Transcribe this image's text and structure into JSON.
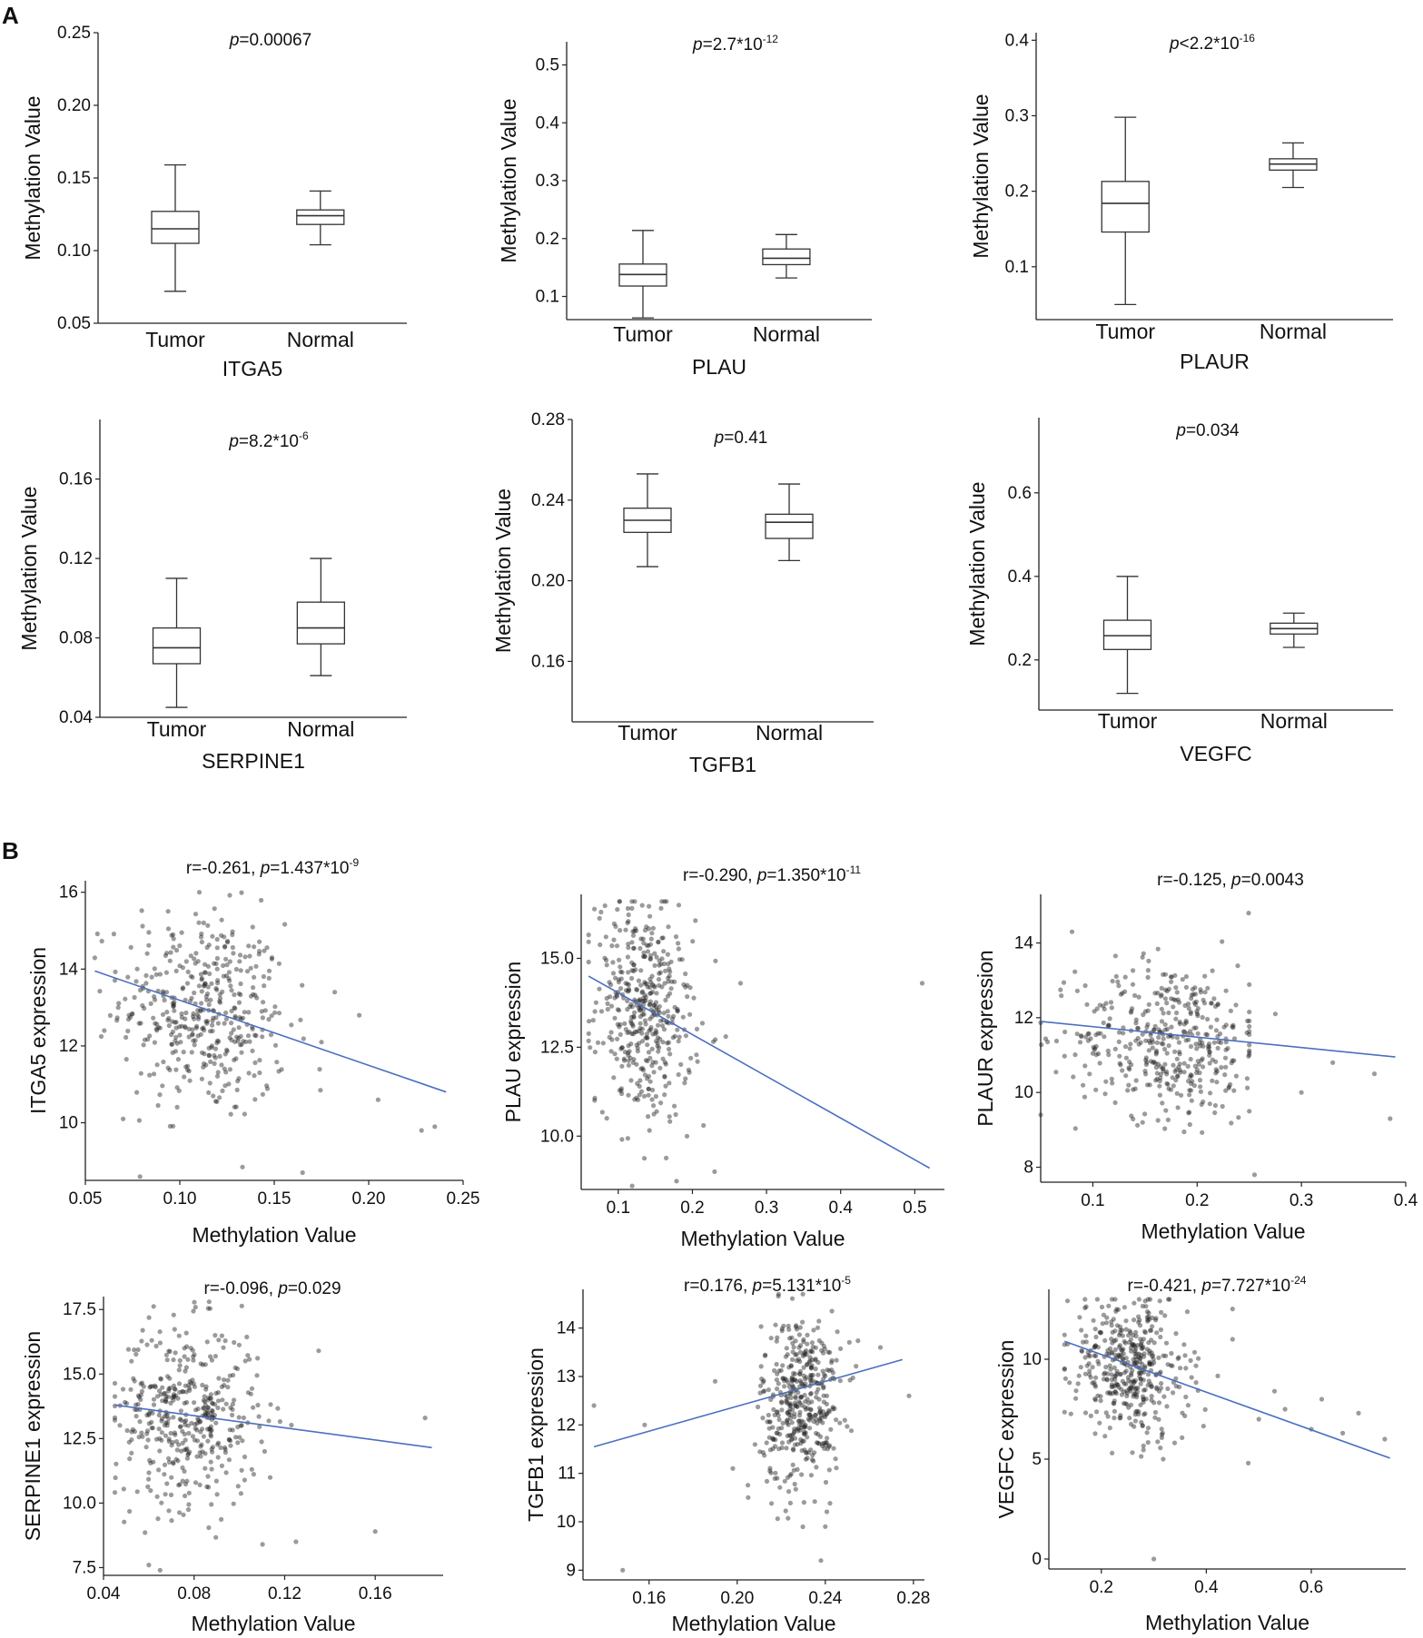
{
  "panels": {
    "a_label": "A",
    "b_label": "B"
  },
  "colors": {
    "fit_line": "#4a6fc1",
    "point": "#222222",
    "box_stroke": "#333333"
  },
  "chart_data": [
    {
      "id": "a1",
      "type": "box",
      "title": "p=0.00067",
      "title_italic": "p",
      "title_rest": "=0.00067",
      "title_sup": "",
      "xlabel": "ITGA5",
      "ylabel": "Methylation Value",
      "categories": [
        "Tumor",
        "Normal"
      ],
      "ylim": [
        0.05,
        0.25
      ],
      "yticks": [
        0.05,
        0.1,
        0.15,
        0.2,
        0.25
      ],
      "tick_labels": [
        "0.05",
        "0.10",
        "0.15",
        "0.20",
        "0.25"
      ],
      "boxes": [
        {
          "min": 0.072,
          "q1": 0.105,
          "median": 0.115,
          "q3": 0.127,
          "max": 0.159
        },
        {
          "min": 0.104,
          "q1": 0.118,
          "median": 0.124,
          "q3": 0.128,
          "max": 0.141
        }
      ]
    },
    {
      "id": "a2",
      "type": "box",
      "title": "p=2.7*10-12",
      "title_italic": "p",
      "title_rest": "=2.7*10",
      "title_sup": "-12",
      "xlabel": "PLAU",
      "ylabel": "Methylation Value",
      "categories": [
        "Tumor",
        "Normal"
      ],
      "ylim": [
        0.06,
        0.54
      ],
      "yticks": [
        0.1,
        0.2,
        0.3,
        0.4,
        0.5
      ],
      "tick_labels": [
        "0.1",
        "0.2",
        "0.3",
        "0.4",
        "0.5"
      ],
      "boxes": [
        {
          "min": 0.063,
          "q1": 0.118,
          "median": 0.138,
          "q3": 0.156,
          "max": 0.214
        },
        {
          "min": 0.132,
          "q1": 0.155,
          "median": 0.166,
          "q3": 0.182,
          "max": 0.207
        }
      ]
    },
    {
      "id": "a3",
      "type": "box",
      "title": "p<2.2*10-16",
      "title_italic": "p",
      "title_rest": "<2.2*10",
      "title_sup": "-16",
      "xlabel": "PLAUR",
      "ylabel": "Methylation Value",
      "categories": [
        "Tumor",
        "Normal"
      ],
      "ylim": [
        0.03,
        0.41
      ],
      "yticks": [
        0.1,
        0.2,
        0.3,
        0.4
      ],
      "tick_labels": [
        "0.1",
        "0.2",
        "0.3",
        "0.4"
      ],
      "boxes": [
        {
          "min": 0.05,
          "q1": 0.146,
          "median": 0.184,
          "q3": 0.213,
          "max": 0.298
        },
        {
          "min": 0.205,
          "q1": 0.228,
          "median": 0.236,
          "q3": 0.243,
          "max": 0.264
        }
      ]
    },
    {
      "id": "a4",
      "type": "box",
      "title": "p=8.2*10-6",
      "title_italic": "p",
      "title_rest": "=8.2*10",
      "title_sup": "-6",
      "xlabel": "SERPINE1",
      "ylabel": "Methylation Value",
      "categories": [
        "Tumor",
        "Normal"
      ],
      "ylim": [
        0.04,
        0.19
      ],
      "yticks": [
        0.04,
        0.08,
        0.12,
        0.16
      ],
      "tick_labels": [
        "0.04",
        "0.08",
        "0.12",
        "0.16"
      ],
      "boxes": [
        {
          "min": 0.045,
          "q1": 0.067,
          "median": 0.075,
          "q3": 0.085,
          "max": 0.11
        },
        {
          "min": 0.061,
          "q1": 0.077,
          "median": 0.085,
          "q3": 0.098,
          "max": 0.12
        }
      ]
    },
    {
      "id": "a5",
      "type": "box",
      "title": "p=0.41",
      "title_italic": "p",
      "title_rest": "=0.41",
      "title_sup": "",
      "xlabel": "TGFB1",
      "ylabel": "Methylation Value",
      "categories": [
        "Tumor",
        "Normal"
      ],
      "ylim": [
        0.13,
        0.28
      ],
      "yticks": [
        0.16,
        0.2,
        0.24,
        0.28
      ],
      "tick_labels": [
        "0.16",
        "0.20",
        "0.24",
        "0.28"
      ],
      "boxes": [
        {
          "min": 0.207,
          "q1": 0.224,
          "median": 0.23,
          "q3": 0.236,
          "max": 0.253
        },
        {
          "min": 0.21,
          "q1": 0.221,
          "median": 0.229,
          "q3": 0.233,
          "max": 0.248
        }
      ]
    },
    {
      "id": "a6",
      "type": "box",
      "title": "p=0.034",
      "title_italic": "p",
      "title_rest": "=0.034",
      "title_sup": "",
      "xlabel": "VEGFC",
      "ylabel": "Methylation Value",
      "categories": [
        "Tumor",
        "Normal"
      ],
      "ylim": [
        0.08,
        0.78
      ],
      "yticks": [
        0.2,
        0.4,
        0.6
      ],
      "tick_labels": [
        "0.2",
        "0.4",
        "0.6"
      ],
      "boxes": [
        {
          "min": 0.12,
          "q1": 0.225,
          "median": 0.258,
          "q3": 0.295,
          "max": 0.4
        },
        {
          "min": 0.23,
          "q1": 0.262,
          "median": 0.275,
          "q3": 0.288,
          "max": 0.312
        }
      ]
    },
    {
      "id": "b1",
      "type": "scatter",
      "title_r": "r=-0.261, ",
      "title_italic": "p",
      "title_rest": "=1.437*10",
      "title_sup": "-9",
      "xlabel": "Methylation Value",
      "ylabel": "ITGA5 expression",
      "xlim": [
        0.05,
        0.25
      ],
      "ylim": [
        8.5,
        16.3
      ],
      "xticks": [
        0.05,
        0.1,
        0.15,
        0.2,
        0.25
      ],
      "xtick_labels": [
        "0.05",
        "0.10",
        "0.15",
        "0.20",
        "0.25"
      ],
      "yticks": [
        10,
        12,
        14,
        16
      ],
      "ytick_labels": [
        "10",
        "12",
        "14",
        "16"
      ],
      "fit": {
        "x": [
          0.055,
          0.241
        ],
        "y": [
          13.95,
          10.8
        ]
      },
      "cluster": {
        "cx": 0.113,
        "cy": 12.9,
        "sx": 0.022,
        "sy": 1.35,
        "n": 430,
        "xmin": 0.055,
        "xmax": 0.245,
        "ymin": 8.6,
        "ymax": 16.0,
        "slope": -17
      },
      "outliers": [
        [
          0.235,
          9.9
        ],
        [
          0.228,
          9.8
        ],
        [
          0.205,
          10.6
        ],
        [
          0.182,
          13.4
        ],
        [
          0.175,
          12.1
        ],
        [
          0.165,
          8.7
        ],
        [
          0.195,
          12.8
        ],
        [
          0.06,
          12.4
        ],
        [
          0.07,
          10.1
        ]
      ]
    },
    {
      "id": "b2",
      "type": "scatter",
      "title_r": "r=-0.290, ",
      "title_italic": "p",
      "title_rest": "=1.350*10",
      "title_sup": "-11",
      "xlabel": "Methylation Value",
      "ylabel": "PLAU expression",
      "xlim": [
        0.05,
        0.54
      ],
      "ylim": [
        8.5,
        16.8
      ],
      "xticks": [
        0.1,
        0.2,
        0.3,
        0.4,
        0.5
      ],
      "xtick_labels": [
        "0.1",
        "0.2",
        "0.3",
        "0.4",
        "0.5"
      ],
      "yticks": [
        10.0,
        12.5,
        15.0
      ],
      "ytick_labels": [
        "10.0",
        "12.5",
        "15.0"
      ],
      "fit": {
        "x": [
          0.06,
          0.52
        ],
        "y": [
          14.5,
          9.1
        ]
      },
      "cluster": {
        "cx": 0.135,
        "cy": 13.5,
        "sx": 0.032,
        "sy": 1.5,
        "n": 430,
        "xmin": 0.06,
        "xmax": 0.3,
        "ymin": 8.6,
        "ymax": 16.6,
        "slope": -12
      },
      "outliers": [
        [
          0.51,
          14.3
        ],
        [
          0.265,
          14.3
        ],
        [
          0.23,
          9.0
        ],
        [
          0.245,
          12.8
        ],
        [
          0.215,
          10.3
        ]
      ]
    },
    {
      "id": "b3",
      "type": "scatter",
      "title_r": "r=-0.125, ",
      "title_italic": "p",
      "title_rest": "=0.0043",
      "title_sup": "",
      "xlabel": "Methylation Value",
      "ylabel": "PLAUR expression",
      "xlim": [
        0.05,
        0.4
      ],
      "ylim": [
        7.6,
        15.3
      ],
      "xticks": [
        0.1,
        0.2,
        0.3,
        0.4
      ],
      "xtick_labels": [
        "0.1",
        "0.2",
        "0.3",
        "0.4"
      ],
      "yticks": [
        8,
        10,
        12,
        14
      ],
      "ytick_labels": [
        "8",
        "10",
        "12",
        "14"
      ],
      "fit": {
        "x": [
          0.05,
          0.39
        ],
        "y": [
          11.9,
          10.95
        ]
      },
      "cluster": {
        "cx": 0.175,
        "cy": 11.4,
        "sx": 0.045,
        "sy": 1.05,
        "n": 430,
        "xmin": 0.05,
        "xmax": 0.25,
        "ymin": 8.1,
        "ymax": 14.8,
        "slope": -3
      },
      "outliers": [
        [
          0.385,
          9.3
        ],
        [
          0.37,
          10.5
        ],
        [
          0.33,
          10.8
        ],
        [
          0.3,
          10.0
        ],
        [
          0.275,
          12.1
        ],
        [
          0.08,
          14.3
        ],
        [
          0.255,
          7.8
        ],
        [
          0.25,
          9.5
        ]
      ]
    },
    {
      "id": "b4",
      "type": "scatter",
      "title_r": "r=-0.096, ",
      "title_italic": "p",
      "title_rest": "=0.029",
      "title_sup": "",
      "xlabel": "Methylation Value",
      "ylabel": "SERPINE1 expression",
      "xlim": [
        0.04,
        0.19
      ],
      "ylim": [
        7.2,
        18.0
      ],
      "xticks": [
        0.04,
        0.08,
        0.12,
        0.16
      ],
      "xtick_labels": [
        "0.04",
        "0.08",
        "0.12",
        "0.16"
      ],
      "yticks": [
        7.5,
        10.0,
        12.5,
        15.0,
        17.5
      ],
      "ytick_labels": [
        "7.5",
        "10.0",
        "12.5",
        "15.0",
        "17.5"
      ],
      "fit": {
        "x": [
          0.045,
          0.185
        ],
        "y": [
          13.8,
          12.15
        ]
      },
      "cluster": {
        "cx": 0.077,
        "cy": 13.4,
        "sx": 0.016,
        "sy": 1.75,
        "n": 430,
        "xmin": 0.045,
        "xmax": 0.125,
        "ymin": 8.4,
        "ymax": 17.8,
        "slope": -10
      },
      "outliers": [
        [
          0.182,
          13.3
        ],
        [
          0.16,
          8.9
        ],
        [
          0.135,
          15.9
        ],
        [
          0.125,
          8.5
        ],
        [
          0.065,
          7.4
        ],
        [
          0.06,
          7.6
        ]
      ]
    },
    {
      "id": "b5",
      "type": "scatter",
      "title_r": "r=0.176, ",
      "title_italic": "p",
      "title_rest": "=5.131*10",
      "title_sup": "-5",
      "xlabel": "Methylation Value",
      "ylabel": "TGFB1 expression",
      "xlim": [
        0.13,
        0.285
      ],
      "ylim": [
        8.8,
        14.8
      ],
      "xticks": [
        0.16,
        0.2,
        0.24,
        0.28
      ],
      "xtick_labels": [
        "0.16",
        "0.20",
        "0.24",
        "0.28"
      ],
      "yticks": [
        9,
        10,
        11,
        12,
        13,
        14
      ],
      "ytick_labels": [
        "9",
        "10",
        "11",
        "12",
        "13",
        "14"
      ],
      "fit": {
        "x": [
          0.135,
          0.275
        ],
        "y": [
          11.55,
          13.35
        ]
      },
      "cluster": {
        "cx": 0.229,
        "cy": 12.5,
        "sx": 0.009,
        "sy": 0.9,
        "n": 430,
        "xmin": 0.19,
        "xmax": 0.27,
        "ymin": 9.8,
        "ymax": 14.7,
        "slope": 15
      },
      "outliers": [
        [
          0.148,
          9.0
        ],
        [
          0.135,
          12.4
        ],
        [
          0.158,
          12.0
        ],
        [
          0.19,
          12.9
        ],
        [
          0.198,
          11.1
        ],
        [
          0.205,
          10.5
        ],
        [
          0.278,
          12.6
        ],
        [
          0.238,
          9.2
        ],
        [
          0.24,
          9.9
        ],
        [
          0.265,
          13.6
        ]
      ]
    },
    {
      "id": "b6",
      "type": "scatter",
      "title_r": "r=-0.421, ",
      "title_italic": "p",
      "title_rest": "=7.727*10",
      "title_sup": "-24",
      "xlabel": "Methylation Value",
      "ylabel": "VEGFC expression",
      "xlim": [
        0.1,
        0.78
      ],
      "ylim": [
        -0.5,
        13.5
      ],
      "xticks": [
        0.2,
        0.4,
        0.6
      ],
      "xtick_labels": [
        "0.2",
        "0.4",
        "0.6"
      ],
      "yticks": [
        0,
        5,
        10
      ],
      "ytick_labels": [
        "0",
        "5",
        "10"
      ],
      "fit": {
        "x": [
          0.13,
          0.75
        ],
        "y": [
          10.9,
          5.05
        ]
      },
      "cluster": {
        "cx": 0.255,
        "cy": 9.6,
        "sx": 0.055,
        "sy": 1.75,
        "n": 430,
        "xmin": 0.13,
        "xmax": 0.45,
        "ymin": 5.0,
        "ymax": 13.0,
        "slope": -9
      },
      "outliers": [
        [
          0.3,
          0.0
        ],
        [
          0.74,
          6.0
        ],
        [
          0.69,
          7.3
        ],
        [
          0.66,
          6.3
        ],
        [
          0.6,
          6.5
        ],
        [
          0.55,
          7.5
        ],
        [
          0.5,
          7.0
        ],
        [
          0.48,
          4.8
        ],
        [
          0.53,
          8.4
        ],
        [
          0.45,
          11.0
        ],
        [
          0.62,
          8.0
        ]
      ]
    }
  ]
}
